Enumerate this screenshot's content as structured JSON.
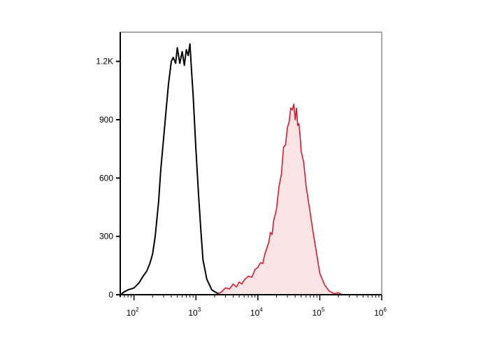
{
  "chart_data": {
    "type": "area",
    "title": "",
    "xlabel": "",
    "ylabel": "",
    "x_scale": "log",
    "xlim": [
      60,
      1000000
    ],
    "ylim": [
      0,
      1350
    ],
    "grid": false,
    "x_ticks": [
      {
        "value": 100,
        "base": "10",
        "exp": "2"
      },
      {
        "value": 1000,
        "base": "10",
        "exp": "3"
      },
      {
        "value": 10000,
        "base": "10",
        "exp": "4"
      },
      {
        "value": 100000,
        "base": "10",
        "exp": "5"
      },
      {
        "value": 1000000,
        "base": "10",
        "exp": "6"
      }
    ],
    "y_ticks": [
      {
        "value": 0,
        "label": "0"
      },
      {
        "value": 300,
        "label": "300"
      },
      {
        "value": 600,
        "label": "600"
      },
      {
        "value": 900,
        "label": "900"
      },
      {
        "value": 1200,
        "label": "1.2K"
      }
    ],
    "series": [
      {
        "color": "#000000",
        "fill": "none",
        "x": [
          60,
          70,
          80,
          90,
          100,
          120,
          140,
          160,
          180,
          200,
          220,
          250,
          270,
          300,
          330,
          360,
          400,
          430,
          470,
          500,
          550,
          600,
          650,
          700,
          750,
          800,
          850,
          900,
          1000,
          1100,
          1200,
          1300,
          1500,
          1800,
          2200,
          2800,
          3500,
          4500,
          6000,
          8000,
          10000,
          12000,
          15000,
          20000
        ],
        "y": [
          0,
          15,
          25,
          30,
          35,
          60,
          95,
          120,
          160,
          210,
          300,
          480,
          640,
          800,
          950,
          1080,
          1200,
          1220,
          1190,
          1270,
          1190,
          1250,
          1180,
          1260,
          1230,
          1290,
          1150,
          1030,
          750,
          520,
          330,
          180,
          80,
          25,
          8,
          2,
          0,
          2,
          8,
          18,
          22,
          12,
          4,
          0
        ]
      },
      {
        "color": "#e0182d",
        "fill": "#fbe4e6",
        "x": [
          2200,
          2600,
          3000,
          3500,
          4000,
          4500,
          5000,
          5500,
          6000,
          7000,
          8000,
          9000,
          10000,
          11000,
          12000,
          13000,
          14000,
          15000,
          16000,
          17000,
          18000,
          20000,
          22000,
          24000,
          26000,
          28000,
          30000,
          32000,
          34000,
          36000,
          38000,
          40000,
          42000,
          44000,
          46000,
          48000,
          50000,
          55000,
          60000,
          70000,
          80000,
          90000,
          100000,
          120000,
          140000,
          170000,
          200000,
          230000
        ],
        "y": [
          0,
          15,
          35,
          30,
          55,
          40,
          65,
          55,
          75,
          95,
          90,
          130,
          140,
          165,
          160,
          210,
          240,
          270,
          320,
          310,
          380,
          440,
          560,
          620,
          760,
          770,
          860,
          890,
          960,
          950,
          980,
          900,
          960,
          870,
          880,
          820,
          740,
          680,
          560,
          420,
          300,
          200,
          110,
          50,
          20,
          5,
          10,
          0
        ]
      }
    ]
  }
}
